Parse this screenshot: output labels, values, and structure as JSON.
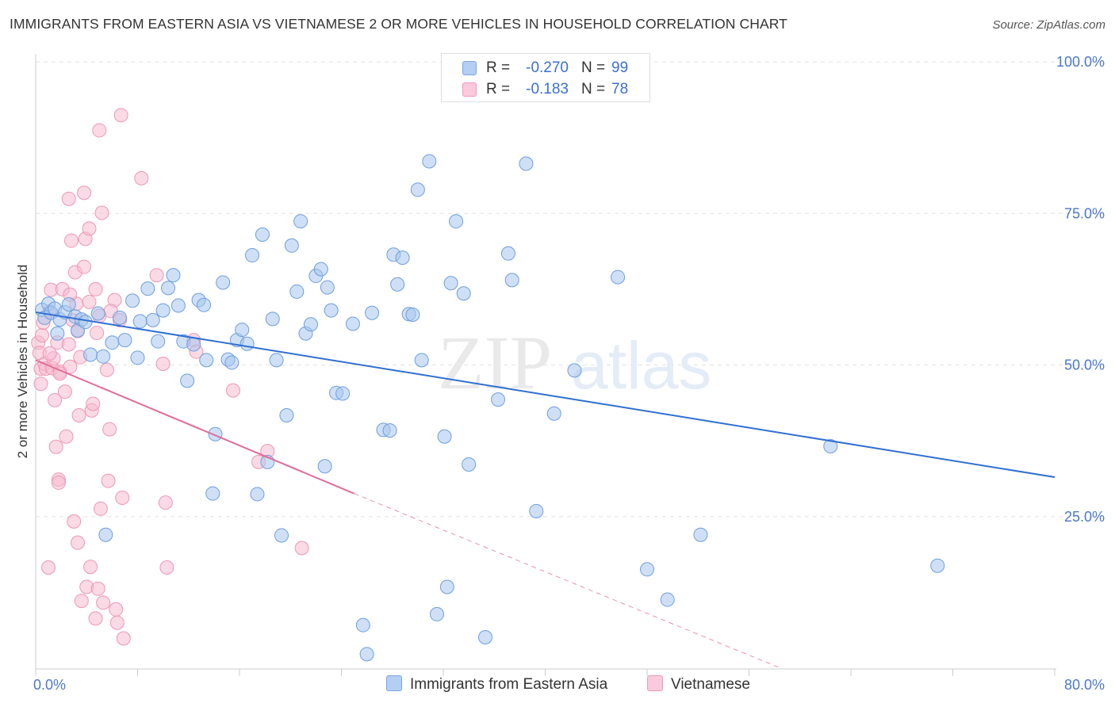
{
  "header": {
    "title": "IMMIGRANTS FROM EASTERN ASIA VS VIETNAMESE 2 OR MORE VEHICLES IN HOUSEHOLD CORRELATION CHART",
    "source": "Source: ZipAtlas.com"
  },
  "watermark": {
    "zip": "ZIP",
    "atlas": "atlas"
  },
  "legend": {
    "rows": [
      {
        "r_label": "R =",
        "r_value": "-0.270",
        "n_label": "N =",
        "n_value": "99"
      },
      {
        "r_label": "R =",
        "r_value": "-0.183",
        "n_label": "N =",
        "n_value": "78"
      }
    ]
  },
  "chart_data": {
    "type": "scatter",
    "title": "IMMIGRANTS FROM EASTERN ASIA VS VIETNAMESE 2 OR MORE VEHICLES IN HOUSEHOLD CORRELATION CHART",
    "xlabel": "",
    "ylabel": "2 or more Vehicles in Household",
    "xlim": [
      0,
      80
    ],
    "ylim": [
      0,
      100
    ],
    "x_tick_labels": [
      "0.0%",
      "80.0%"
    ],
    "y_ticks": [
      25,
      50,
      75,
      100
    ],
    "y_tick_labels": [
      "25.0%",
      "50.0%",
      "75.0%",
      "100.0%"
    ],
    "grid": true,
    "legend_position": "bottom",
    "colors": {
      "series1_fill": "#a8c6ee",
      "series1_stroke": "#6e9ede",
      "series1_line": "#2f6fd2",
      "series2_fill": "#f6bcd0",
      "series2_stroke": "#ee97b4",
      "series2_line": "#e06c98",
      "axis_text": "#4a78c8",
      "grid": "#e2e2e2"
    },
    "series": [
      {
        "name": "Immigrants from Eastern Asia",
        "trendline": {
          "x": [
            0,
            80
          ],
          "y": [
            58.7,
            31.5
          ],
          "dashed_from": null
        },
        "points": [
          [
            0.5,
            59.1
          ],
          [
            0.7,
            57.8
          ],
          [
            1.0,
            60.1
          ],
          [
            1.2,
            58.6
          ],
          [
            1.5,
            59.3
          ],
          [
            1.7,
            55.2
          ],
          [
            1.9,
            57.5
          ],
          [
            2.3,
            58.7
          ],
          [
            2.6,
            60.0
          ],
          [
            3.1,
            58.0
          ],
          [
            3.3,
            55.7
          ],
          [
            3.6,
            57.5
          ],
          [
            3.9,
            57.1
          ],
          [
            4.3,
            51.7
          ],
          [
            4.9,
            58.5
          ],
          [
            5.3,
            51.4
          ],
          [
            5.5,
            22.0
          ],
          [
            6.0,
            53.7
          ],
          [
            6.6,
            57.8
          ],
          [
            7.0,
            54.1
          ],
          [
            7.6,
            60.6
          ],
          [
            8.0,
            51.2
          ],
          [
            8.2,
            57.2
          ],
          [
            8.8,
            62.6
          ],
          [
            9.2,
            57.4
          ],
          [
            9.6,
            53.9
          ],
          [
            10.0,
            59.0
          ],
          [
            10.4,
            62.7
          ],
          [
            10.8,
            64.8
          ],
          [
            11.2,
            59.8
          ],
          [
            11.6,
            53.9
          ],
          [
            11.9,
            47.4
          ],
          [
            12.4,
            53.4
          ],
          [
            12.8,
            60.7
          ],
          [
            13.2,
            59.9
          ],
          [
            13.4,
            50.8
          ],
          [
            13.9,
            28.8
          ],
          [
            14.1,
            38.6
          ],
          [
            14.7,
            63.6
          ],
          [
            15.1,
            50.9
          ],
          [
            15.4,
            50.4
          ],
          [
            15.8,
            54.1
          ],
          [
            16.2,
            55.8
          ],
          [
            16.6,
            53.5
          ],
          [
            17.0,
            68.1
          ],
          [
            17.4,
            28.7
          ],
          [
            17.8,
            71.5
          ],
          [
            18.2,
            34.0
          ],
          [
            18.6,
            57.6
          ],
          [
            18.9,
            50.8
          ],
          [
            19.3,
            21.9
          ],
          [
            19.7,
            41.7
          ],
          [
            20.1,
            69.7
          ],
          [
            20.5,
            62.1
          ],
          [
            20.8,
            73.7
          ],
          [
            21.2,
            55.2
          ],
          [
            21.6,
            56.7
          ],
          [
            22.0,
            64.7
          ],
          [
            22.4,
            65.8
          ],
          [
            22.7,
            33.3
          ],
          [
            22.9,
            62.8
          ],
          [
            23.2,
            59.0
          ],
          [
            23.6,
            45.4
          ],
          [
            24.1,
            45.3
          ],
          [
            24.9,
            56.8
          ],
          [
            25.7,
            7.1
          ],
          [
            26.0,
            2.3
          ],
          [
            26.4,
            58.6
          ],
          [
            27.3,
            39.3
          ],
          [
            27.8,
            39.2
          ],
          [
            28.1,
            68.2
          ],
          [
            28.4,
            63.3
          ],
          [
            28.8,
            67.7
          ],
          [
            29.3,
            58.4
          ],
          [
            29.6,
            58.3
          ],
          [
            30.0,
            78.9
          ],
          [
            30.3,
            50.8
          ],
          [
            30.9,
            83.6
          ],
          [
            31.5,
            8.9
          ],
          [
            32.1,
            38.2
          ],
          [
            32.3,
            13.4
          ],
          [
            32.6,
            63.5
          ],
          [
            33.0,
            73.7
          ],
          [
            33.6,
            61.8
          ],
          [
            34.0,
            33.6
          ],
          [
            35.3,
            5.1
          ],
          [
            36.3,
            44.3
          ],
          [
            37.1,
            68.4
          ],
          [
            37.4,
            64.0
          ],
          [
            38.5,
            83.2
          ],
          [
            39.3,
            25.9
          ],
          [
            40.7,
            42.0
          ],
          [
            42.3,
            49.1
          ],
          [
            45.7,
            64.5
          ],
          [
            48.0,
            16.3
          ],
          [
            49.6,
            11.3
          ],
          [
            52.2,
            22.0
          ],
          [
            62.4,
            36.6
          ],
          [
            70.8,
            16.9
          ]
        ]
      },
      {
        "name": "Vietnamese",
        "trendline": {
          "x": [
            0,
            25
          ],
          "y": [
            50.8,
            28.8
          ],
          "dashed_from": 25,
          "dashed_to": [
            58.5,
            0
          ]
        },
        "points": [
          [
            0.2,
            53.7
          ],
          [
            0.3,
            52.0
          ],
          [
            0.4,
            49.4
          ],
          [
            0.5,
            54.9
          ],
          [
            0.7,
            50.2
          ],
          [
            0.8,
            49.4
          ],
          [
            1.0,
            16.6
          ],
          [
            1.1,
            58.8
          ],
          [
            1.2,
            62.4
          ],
          [
            1.3,
            49.5
          ],
          [
            1.4,
            51.1
          ],
          [
            1.5,
            44.2
          ],
          [
            1.6,
            36.5
          ],
          [
            1.7,
            53.7
          ],
          [
            1.8,
            31.1
          ],
          [
            1.8,
            30.6
          ],
          [
            1.9,
            48.9
          ],
          [
            2.1,
            62.5
          ],
          [
            2.3,
            45.6
          ],
          [
            2.4,
            38.2
          ],
          [
            2.6,
            77.4
          ],
          [
            2.7,
            49.7
          ],
          [
            2.8,
            70.5
          ],
          [
            2.9,
            57.4
          ],
          [
            3.0,
            24.2
          ],
          [
            3.1,
            65.3
          ],
          [
            3.2,
            60.1
          ],
          [
            3.3,
            20.7
          ],
          [
            3.4,
            41.7
          ],
          [
            3.5,
            51.3
          ],
          [
            3.6,
            11.1
          ],
          [
            3.8,
            78.4
          ],
          [
            3.8,
            66.2
          ],
          [
            3.9,
            70.8
          ],
          [
            4.0,
            13.4
          ],
          [
            4.2,
            60.4
          ],
          [
            4.3,
            16.7
          ],
          [
            4.4,
            42.5
          ],
          [
            4.5,
            43.6
          ],
          [
            4.7,
            8.2
          ],
          [
            4.8,
            55.3
          ],
          [
            4.9,
            13.1
          ],
          [
            5.0,
            88.7
          ],
          [
            5.1,
            26.3
          ],
          [
            5.2,
            75.1
          ],
          [
            5.3,
            10.8
          ],
          [
            5.6,
            49.2
          ],
          [
            5.7,
            30.9
          ],
          [
            5.8,
            39.4
          ],
          [
            6.2,
            60.7
          ],
          [
            6.3,
            9.7
          ],
          [
            6.4,
            7.5
          ],
          [
            6.6,
            57.4
          ],
          [
            6.7,
            91.2
          ],
          [
            6.8,
            28.1
          ],
          [
            6.9,
            4.9
          ],
          [
            8.3,
            80.8
          ],
          [
            9.5,
            64.8
          ],
          [
            10.0,
            50.2
          ],
          [
            10.2,
            27.3
          ],
          [
            10.3,
            16.6
          ],
          [
            12.4,
            54.1
          ],
          [
            12.6,
            52.2
          ],
          [
            15.5,
            45.8
          ],
          [
            17.5,
            34.0
          ],
          [
            18.2,
            35.8
          ],
          [
            20.9,
            19.8
          ],
          [
            1.1,
            51.9
          ],
          [
            2.7,
            61.6
          ],
          [
            3.3,
            55.6
          ],
          [
            4.2,
            72.5
          ],
          [
            5.0,
            58.1
          ],
          [
            0.6,
            57.0
          ],
          [
            1.9,
            48.6
          ],
          [
            2.6,
            53.4
          ],
          [
            4.7,
            62.5
          ],
          [
            5.9,
            58.9
          ],
          [
            0.4,
            46.9
          ]
        ]
      }
    ]
  },
  "bottom_legend": {
    "items": [
      {
        "label": "Immigrants from Eastern Asia"
      },
      {
        "label": "Vietnamese"
      }
    ]
  }
}
